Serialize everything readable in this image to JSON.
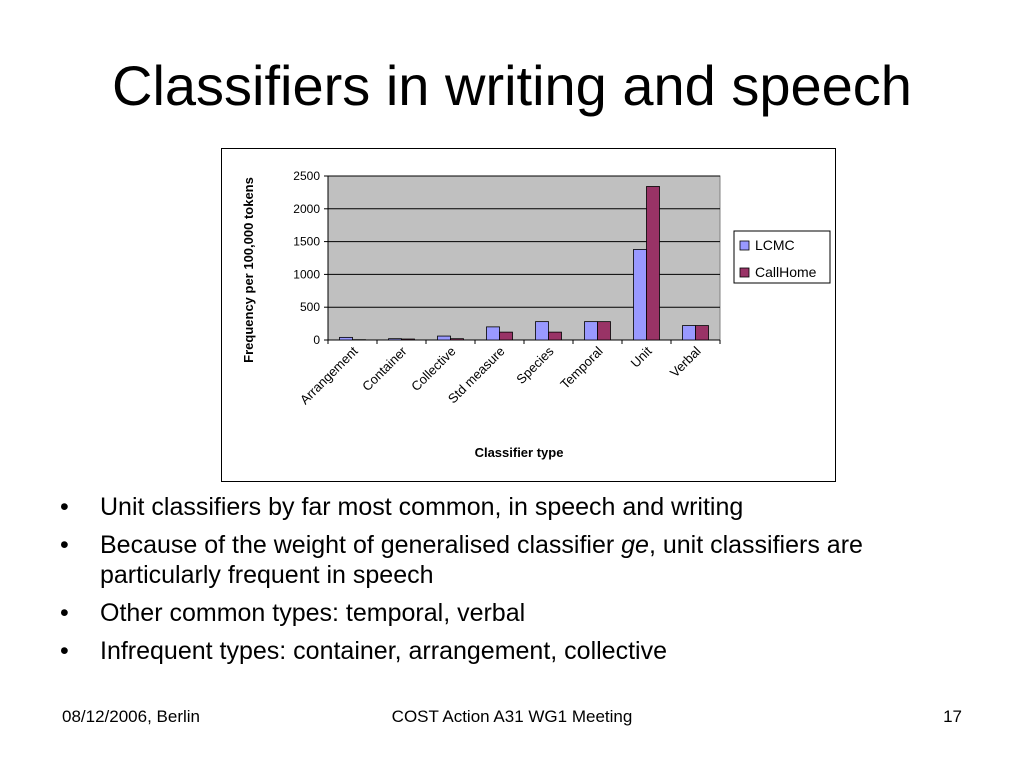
{
  "slide": {
    "title": "Classifiers in writing and speech",
    "bullets": [
      {
        "pre": "Unit classifiers by far most common, in speech and writing",
        "em": "",
        "post": ""
      },
      {
        "pre": "Because of the weight of generalised classifier ",
        "em": "ge",
        "post": ", unit classifiers are particularly frequent in speech"
      },
      {
        "pre": "Other common types: temporal, verbal",
        "em": "",
        "post": ""
      },
      {
        "pre": "Infrequent types: container, arrangement, collective",
        "em": "",
        "post": ""
      }
    ],
    "bullet_symbol": "•",
    "footer": {
      "left": "08/12/2006, Berlin",
      "center": "COST Action A31 WG1 Meeting",
      "right": "17"
    }
  },
  "chart_data": {
    "type": "bar",
    "title": "",
    "xlabel": "Classifier type",
    "ylabel": "Frequency per 100,000 tokens",
    "ylim": [
      0,
      2500
    ],
    "yticks": [
      0,
      500,
      1000,
      1500,
      2000,
      2500
    ],
    "grid": true,
    "legend_position": "right",
    "plot_background": "#C0C0C0",
    "categories": [
      "Arrangement",
      "Container",
      "Collective",
      "Std measure",
      "Species",
      "Temporal",
      "Unit",
      "Verbal"
    ],
    "series": [
      {
        "name": "LCMC",
        "color": "#9999FF",
        "values": [
          40,
          20,
          60,
          200,
          280,
          280,
          1380,
          220
        ]
      },
      {
        "name": "CallHome",
        "color": "#993366",
        "values": [
          5,
          15,
          20,
          120,
          120,
          280,
          2340,
          220
        ]
      }
    ]
  }
}
